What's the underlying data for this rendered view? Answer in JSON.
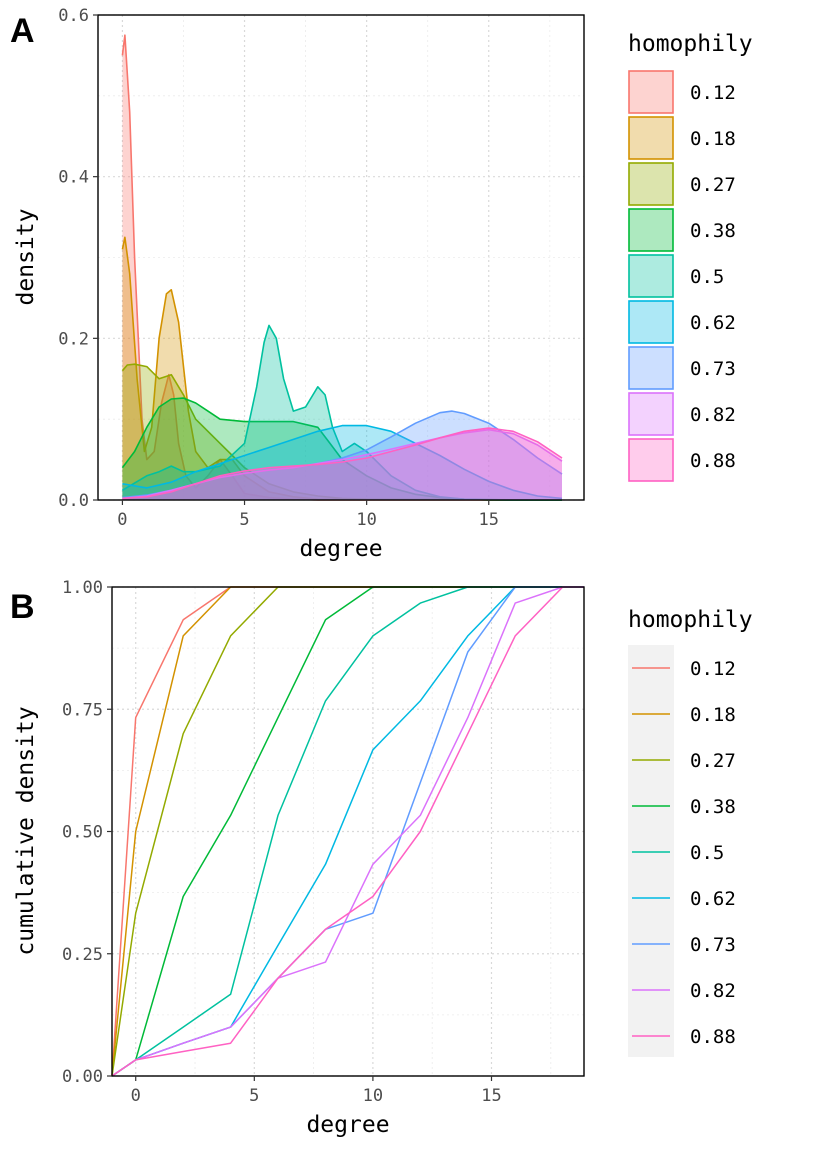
{
  "colors": [
    "#F8766D",
    "#D39200",
    "#93AA00",
    "#00BA38",
    "#00C19F",
    "#00B9E3",
    "#619CFF",
    "#DB72FB",
    "#FF61C3"
  ],
  "chart_data": [
    {
      "panel_label": "A",
      "type": "area",
      "xlabel": "degree",
      "ylabel": "density",
      "xlim": [
        -1,
        18.9
      ],
      "ylim": [
        0,
        0.6
      ],
      "x_ticks": [
        0,
        5,
        10,
        15
      ],
      "x_tick_labels": [
        "0",
        "5",
        "10",
        "15"
      ],
      "y_ticks": [
        0,
        0.2,
        0.4,
        0.6
      ],
      "y_tick_labels": [
        "0.0",
        "0.2",
        "0.4",
        "0.6"
      ],
      "grid": true,
      "legend": {
        "title": "homophily",
        "position": "right"
      },
      "series": [
        {
          "name": "0.12",
          "x": [
            0,
            0.1,
            0.3,
            0.5,
            0.8,
            1.0,
            1.3,
            1.6,
            1.9,
            2.1,
            2.3,
            2.6,
            3.0,
            3.5,
            4.0,
            4.5,
            5.0,
            6.0,
            7.0,
            8.0,
            18.0
          ],
          "y": [
            0.55,
            0.575,
            0.48,
            0.3,
            0.1,
            0.05,
            0.06,
            0.12,
            0.155,
            0.13,
            0.07,
            0.03,
            0.015,
            0.03,
            0.05,
            0.03,
            0.008,
            0.003,
            0.001,
            0,
            0
          ]
        },
        {
          "name": "0.18",
          "x": [
            0,
            0.1,
            0.3,
            0.6,
            0.9,
            1.2,
            1.5,
            1.8,
            2.0,
            2.3,
            2.7,
            3.0,
            3.5,
            4.0,
            4.5,
            5.0,
            6.0,
            7.0,
            8.0,
            18.0
          ],
          "y": [
            0.31,
            0.325,
            0.28,
            0.15,
            0.06,
            0.09,
            0.2,
            0.255,
            0.26,
            0.22,
            0.11,
            0.06,
            0.04,
            0.05,
            0.05,
            0.03,
            0.01,
            0.004,
            0.001,
            0
          ]
        },
        {
          "name": "0.27",
          "x": [
            0,
            0.2,
            0.5,
            1.0,
            1.5,
            2.0,
            2.5,
            3.0,
            3.5,
            4.0,
            4.5,
            5.0,
            6.0,
            7.0,
            8.0,
            9.0,
            10.0,
            18.0
          ],
          "y": [
            0.16,
            0.167,
            0.168,
            0.165,
            0.15,
            0.155,
            0.13,
            0.1,
            0.085,
            0.07,
            0.055,
            0.04,
            0.02,
            0.01,
            0.005,
            0.002,
            0.001,
            0
          ]
        },
        {
          "name": "0.38",
          "x": [
            0,
            0.5,
            1.0,
            1.5,
            2.0,
            2.5,
            3.0,
            3.5,
            4.0,
            5.0,
            6.0,
            7.0,
            8.0,
            8.5,
            9.0,
            10.0,
            11.0,
            12.0,
            13.0,
            14.0,
            15.0,
            18.0
          ],
          "y": [
            0.04,
            0.06,
            0.09,
            0.115,
            0.125,
            0.126,
            0.12,
            0.11,
            0.1,
            0.097,
            0.097,
            0.097,
            0.09,
            0.07,
            0.05,
            0.03,
            0.015,
            0.007,
            0.003,
            0.001,
            0,
            0
          ]
        },
        {
          "name": "0.5",
          "x": [
            0,
            1.0,
            1.5,
            2.0,
            2.5,
            3.0,
            4.0,
            5.0,
            5.5,
            5.8,
            6.0,
            6.3,
            6.6,
            7.0,
            7.5,
            8.0,
            8.3,
            8.6,
            9.0,
            9.5,
            10.0,
            11.0,
            12.0,
            13.0,
            14.0,
            16.0,
            18.0
          ],
          "y": [
            0.012,
            0.03,
            0.035,
            0.042,
            0.035,
            0.035,
            0.042,
            0.07,
            0.14,
            0.195,
            0.216,
            0.2,
            0.15,
            0.11,
            0.115,
            0.14,
            0.13,
            0.09,
            0.06,
            0.07,
            0.06,
            0.03,
            0.012,
            0.004,
            0.001,
            0,
            0
          ]
        },
        {
          "name": "0.62",
          "x": [
            0,
            1.0,
            2.0,
            3.0,
            4.0,
            5.0,
            6.0,
            7.0,
            8.0,
            9.0,
            10.0,
            11.0,
            12.0,
            13.0,
            14.0,
            15.0,
            16.0,
            17.0,
            18.0
          ],
          "y": [
            0.02,
            0.015,
            0.022,
            0.035,
            0.045,
            0.055,
            0.065,
            0.075,
            0.085,
            0.092,
            0.092,
            0.085,
            0.07,
            0.055,
            0.038,
            0.023,
            0.012,
            0.005,
            0.002
          ]
        },
        {
          "name": "0.73",
          "x": [
            0,
            1.0,
            2.0,
            3.0,
            4.0,
            5.0,
            6.0,
            7.0,
            8.0,
            9.0,
            10.0,
            11.0,
            12.0,
            13.0,
            13.5,
            14.0,
            15.0,
            16.0,
            17.0,
            18.0
          ],
          "y": [
            0.003,
            0.006,
            0.012,
            0.02,
            0.028,
            0.033,
            0.037,
            0.04,
            0.045,
            0.052,
            0.062,
            0.078,
            0.095,
            0.108,
            0.11,
            0.107,
            0.095,
            0.075,
            0.052,
            0.032
          ]
        },
        {
          "name": "0.82",
          "x": [
            0,
            1.0,
            2.0,
            3.0,
            4.0,
            5.0,
            6.0,
            7.0,
            8.0,
            9.0,
            10.0,
            11.0,
            12.0,
            13.0,
            14.0,
            15.0,
            16.0,
            17.0,
            18.0
          ],
          "y": [
            0.002,
            0.005,
            0.012,
            0.02,
            0.028,
            0.033,
            0.037,
            0.04,
            0.045,
            0.05,
            0.056,
            0.063,
            0.07,
            0.077,
            0.083,
            0.087,
            0.082,
            0.068,
            0.048
          ]
        },
        {
          "name": "0.88",
          "x": [
            0,
            1.0,
            2.0,
            3.0,
            4.0,
            5.0,
            6.0,
            7.0,
            8.0,
            9.0,
            10.0,
            11.0,
            12.0,
            13.0,
            14.0,
            15.0,
            16.0,
            17.0,
            18.0
          ],
          "y": [
            0.002,
            0.004,
            0.01,
            0.02,
            0.03,
            0.036,
            0.04,
            0.042,
            0.044,
            0.047,
            0.052,
            0.06,
            0.068,
            0.077,
            0.085,
            0.089,
            0.085,
            0.072,
            0.052
          ]
        }
      ]
    },
    {
      "panel_label": "B",
      "type": "line",
      "xlabel": "degree",
      "ylabel": "cumulative density",
      "xlim": [
        -1,
        18.9
      ],
      "ylim": [
        0,
        1
      ],
      "x_ticks": [
        0,
        5,
        10,
        15
      ],
      "x_tick_labels": [
        "0",
        "5",
        "10",
        "15"
      ],
      "y_ticks": [
        0,
        0.25,
        0.5,
        0.75,
        1
      ],
      "y_tick_labels": [
        "0.00",
        "0.25",
        "0.50",
        "0.75",
        "1.00"
      ],
      "grid": true,
      "legend": {
        "title": "homophily",
        "position": "right"
      },
      "series": [
        {
          "name": "0.12",
          "x": [
            -1,
            0,
            2,
            4,
            6,
            18.9
          ],
          "y": [
            0,
            0.733,
            0.933,
            1,
            1,
            1
          ]
        },
        {
          "name": "0.18",
          "x": [
            -1,
            0,
            2,
            4,
            6,
            18.9
          ],
          "y": [
            0,
            0.5,
            0.9,
            1,
            1,
            1
          ]
        },
        {
          "name": "0.27",
          "x": [
            -1,
            0,
            2,
            4,
            6,
            18.9
          ],
          "y": [
            0,
            0.333,
            0.7,
            0.9,
            1,
            1
          ]
        },
        {
          "name": "0.38",
          "x": [
            -1,
            0,
            2,
            4,
            6,
            8,
            10,
            18.9
          ],
          "y": [
            0,
            0.033,
            0.367,
            0.533,
            0.733,
            0.933,
            1,
            1
          ]
        },
        {
          "name": "0.5",
          "x": [
            -1,
            0,
            2,
            4,
            6,
            8,
            10,
            12,
            14,
            18.9
          ],
          "y": [
            0,
            0.033,
            0.1,
            0.167,
            0.533,
            0.767,
            0.9,
            0.967,
            1,
            1
          ]
        },
        {
          "name": "0.62",
          "x": [
            -1,
            0,
            2,
            4,
            6,
            8,
            10,
            12,
            14,
            16,
            18.9
          ],
          "y": [
            0,
            0.033,
            0.067,
            0.1,
            0.267,
            0.433,
            0.667,
            0.767,
            0.9,
            1,
            1
          ]
        },
        {
          "name": "0.73",
          "x": [
            -1,
            0,
            2,
            4,
            6,
            8,
            10,
            12,
            14,
            16,
            18.9
          ],
          "y": [
            0,
            0.033,
            0.067,
            0.1,
            0.2,
            0.3,
            0.333,
            0.6,
            0.867,
            1,
            1
          ]
        },
        {
          "name": "0.82",
          "x": [
            -1,
            0,
            2,
            4,
            6,
            8,
            10,
            12,
            14,
            16,
            18,
            18.9
          ],
          "y": [
            0,
            0.033,
            0.067,
            0.1,
            0.2,
            0.233,
            0.433,
            0.533,
            0.733,
            0.967,
            1,
            1
          ]
        },
        {
          "name": "0.88",
          "x": [
            -1,
            0,
            2,
            4,
            6,
            8,
            10,
            12,
            14,
            16,
            18,
            18.9
          ],
          "y": [
            0,
            0.033,
            0.05,
            0.067,
            0.2,
            0.3,
            0.367,
            0.5,
            0.7,
            0.9,
            1,
            1
          ]
        }
      ]
    }
  ]
}
